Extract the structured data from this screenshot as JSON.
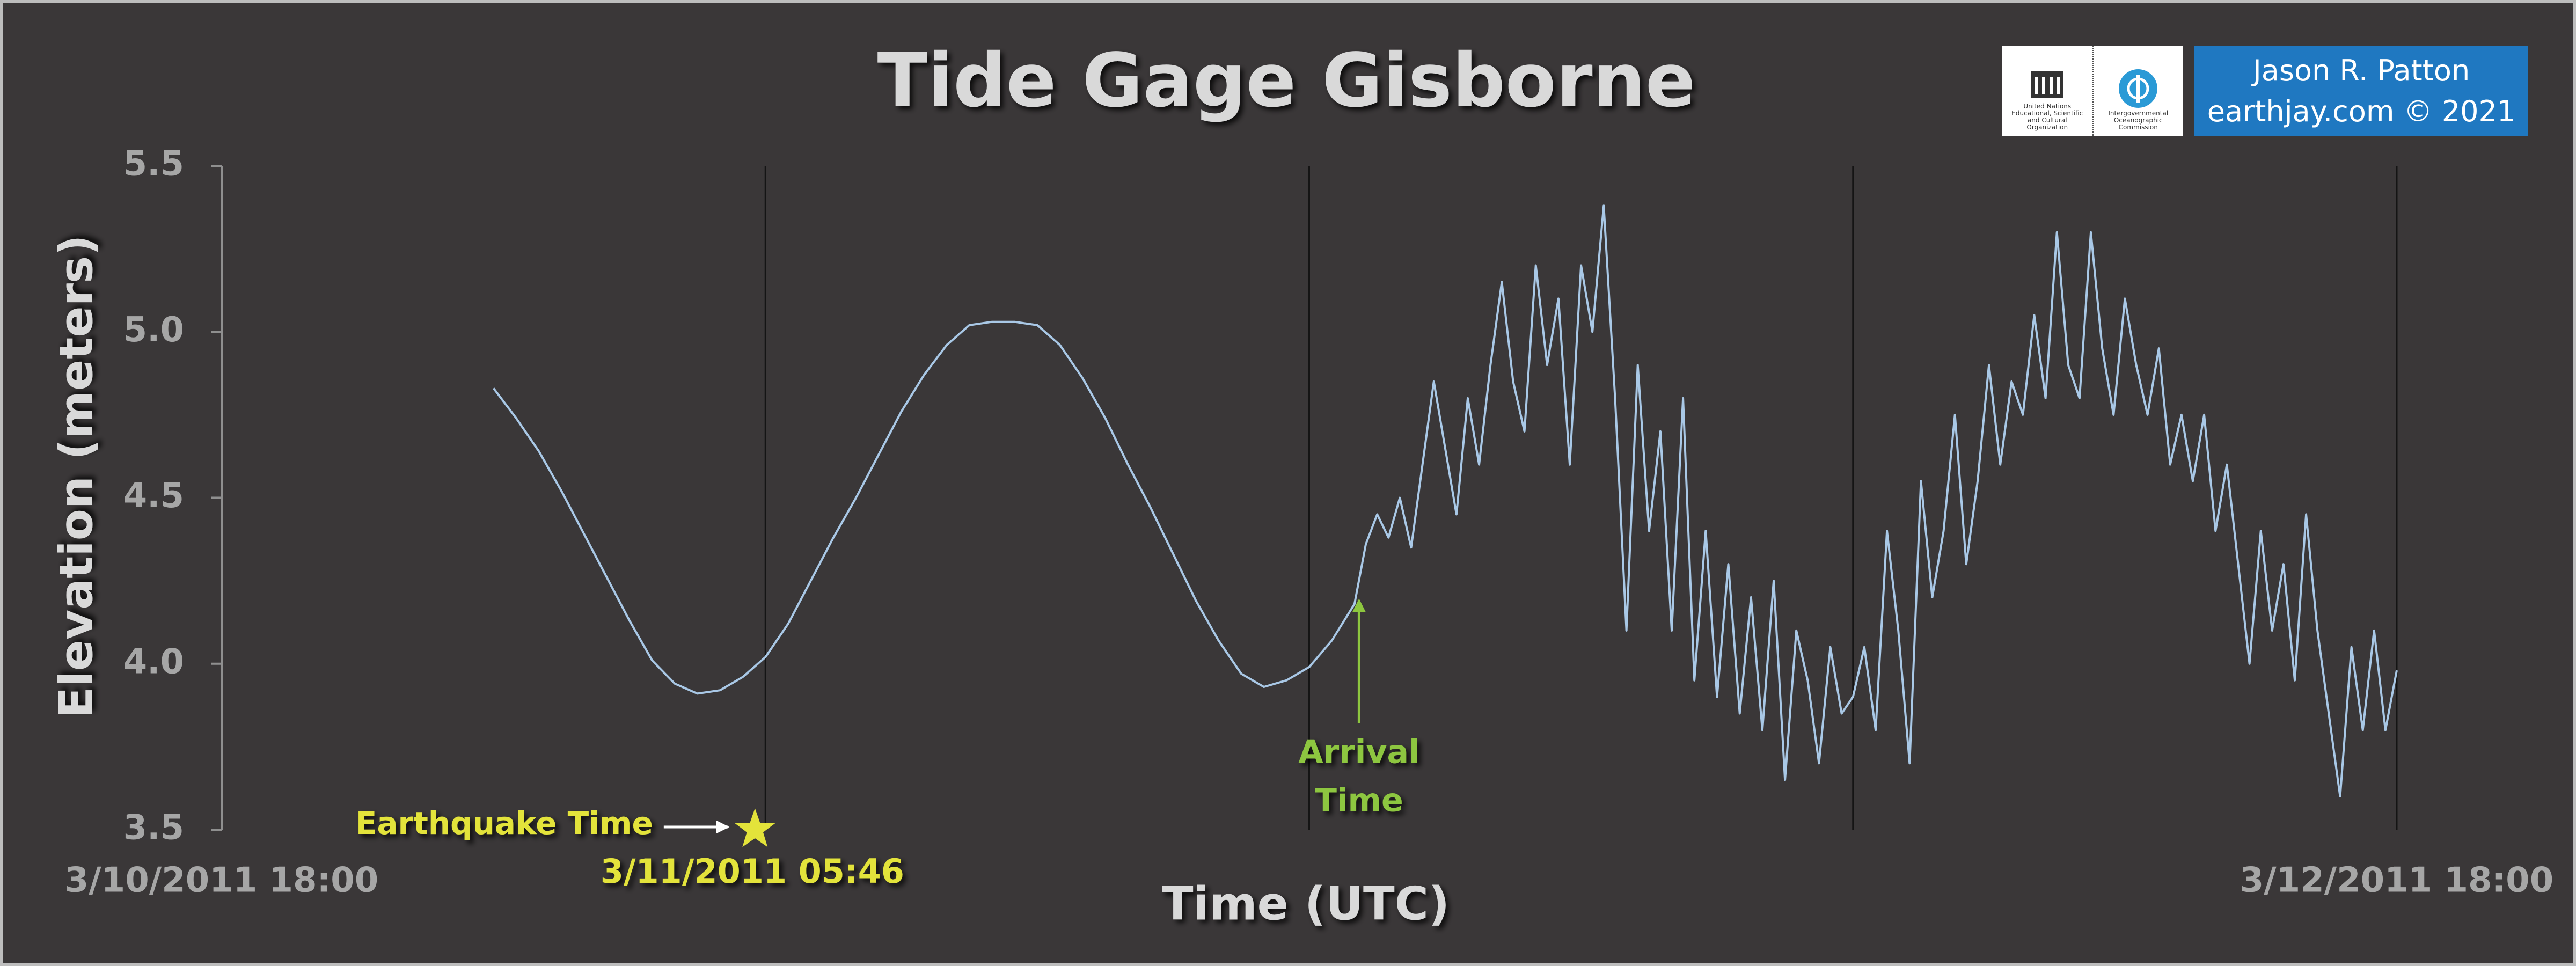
{
  "chart_data": {
    "type": "line",
    "title": "Tide Gage Gisborne",
    "ylabel": "Elevation (meters)",
    "xlabel": "Time (UTC)",
    "xlim": [
      0,
      48
    ],
    "xticks": [
      {
        "value": 0,
        "label": "3/10/2011 18:00"
      },
      {
        "value": 48,
        "label": "3/12/2011 18:00"
      }
    ],
    "xgrid": [
      12,
      24,
      36,
      48
    ],
    "ylim": [
      3.5,
      5.5
    ],
    "yticks": [
      3.5,
      {
        "value": 4,
        "label": "4.0"
      },
      4.5,
      {
        "value": 5,
        "label": "5.0"
      },
      5.5
    ],
    "series": [
      {
        "color": "#a9c8e6",
        "x": [
          6,
          6.5,
          7,
          7.5,
          8,
          8.5,
          9,
          9.5,
          10,
          10.5,
          11,
          11.5,
          12,
          12.5,
          13,
          13.5,
          14,
          14.5,
          15,
          15.5,
          16,
          16.5,
          17,
          17.5,
          18,
          18.5,
          19,
          19.5,
          20,
          20.5,
          21,
          21.5,
          22,
          22.5,
          23,
          23.5,
          24,
          24.5,
          25,
          25.25,
          25.5,
          25.75,
          26,
          26.25,
          26.5,
          26.75,
          27,
          27.25,
          27.5,
          27.75,
          28,
          28.25,
          28.5,
          28.75,
          29,
          29.25,
          29.5,
          29.75,
          30,
          30.25,
          30.5,
          30.75,
          31,
          31.25,
          31.5,
          31.75,
          32,
          32.25,
          32.5,
          32.75,
          33,
          33.25,
          33.5,
          33.75,
          34,
          34.25,
          34.5,
          34.75,
          35,
          35.25,
          35.5,
          35.75,
          36,
          36.25,
          36.5,
          36.75,
          37,
          37.25,
          37.5,
          37.75,
          38,
          38.25,
          38.5,
          38.75,
          39,
          39.25,
          39.5,
          39.75,
          40,
          40.25,
          40.5,
          40.75,
          41,
          41.25,
          41.5,
          41.75,
          42,
          42.25,
          42.5,
          42.75,
          43,
          43.25,
          43.5,
          43.75,
          44,
          44.25,
          44.5,
          44.75,
          45,
          45.25,
          45.5,
          45.75,
          46,
          46.25,
          46.5,
          46.75,
          47,
          47.25,
          47.5,
          47.75,
          48
        ],
        "values": [
          4.83,
          4.74,
          4.64,
          4.52,
          4.39,
          4.26,
          4.13,
          4.01,
          3.94,
          3.91,
          3.92,
          3.96,
          4.02,
          4.12,
          4.25,
          4.38,
          4.5,
          4.63,
          4.76,
          4.87,
          4.96,
          5.02,
          5.03,
          5.03,
          5.02,
          4.96,
          4.86,
          4.74,
          4.6,
          4.47,
          4.33,
          4.19,
          4.07,
          3.97,
          3.93,
          3.95,
          3.99,
          4.07,
          4.18,
          4.36,
          4.45,
          4.38,
          4.5,
          4.35,
          4.6,
          4.85,
          4.65,
          4.45,
          4.8,
          4.6,
          4.9,
          5.15,
          4.85,
          4.7,
          5.2,
          4.9,
          5.1,
          4.6,
          5.2,
          5.0,
          5.38,
          4.8,
          4.1,
          4.9,
          4.4,
          4.7,
          4.1,
          4.8,
          3.95,
          4.4,
          3.9,
          4.3,
          3.85,
          4.2,
          3.8,
          4.25,
          3.65,
          4.1,
          3.95,
          3.7,
          4.05,
          3.85,
          3.9,
          4.05,
          3.8,
          4.4,
          4.1,
          3.7,
          4.55,
          4.2,
          4.4,
          4.75,
          4.3,
          4.55,
          4.9,
          4.6,
          4.85,
          4.75,
          5.05,
          4.8,
          5.3,
          4.9,
          4.8,
          5.3,
          4.95,
          4.75,
          5.1,
          4.9,
          4.75,
          4.95,
          4.6,
          4.75,
          4.55,
          4.75,
          4.4,
          4.6,
          4.3,
          4.0,
          4.4,
          4.1,
          4.3,
          3.95,
          4.45,
          4.1,
          3.85,
          3.6,
          4.05,
          3.8,
          4.1,
          3.8,
          3.98
        ]
      }
    ],
    "annotations": [
      {
        "text": "Earthquake Time",
        "date": "3/11/2011 05:46",
        "x": 11.77,
        "y": 3.5,
        "color": "#e3e33a"
      },
      {
        "text_lines": [
          "Arrival",
          "Time"
        ],
        "x": 25.1,
        "y": 4.2,
        "color": "#8dc63f"
      }
    ],
    "credits": {
      "author": "Jason R. Patton",
      "site": "earthjay.com © 2021",
      "logos": [
        "United Nations Educational, Scientific and Cultural Organization",
        "Intergovernmental Oceanographic Commission"
      ]
    }
  }
}
